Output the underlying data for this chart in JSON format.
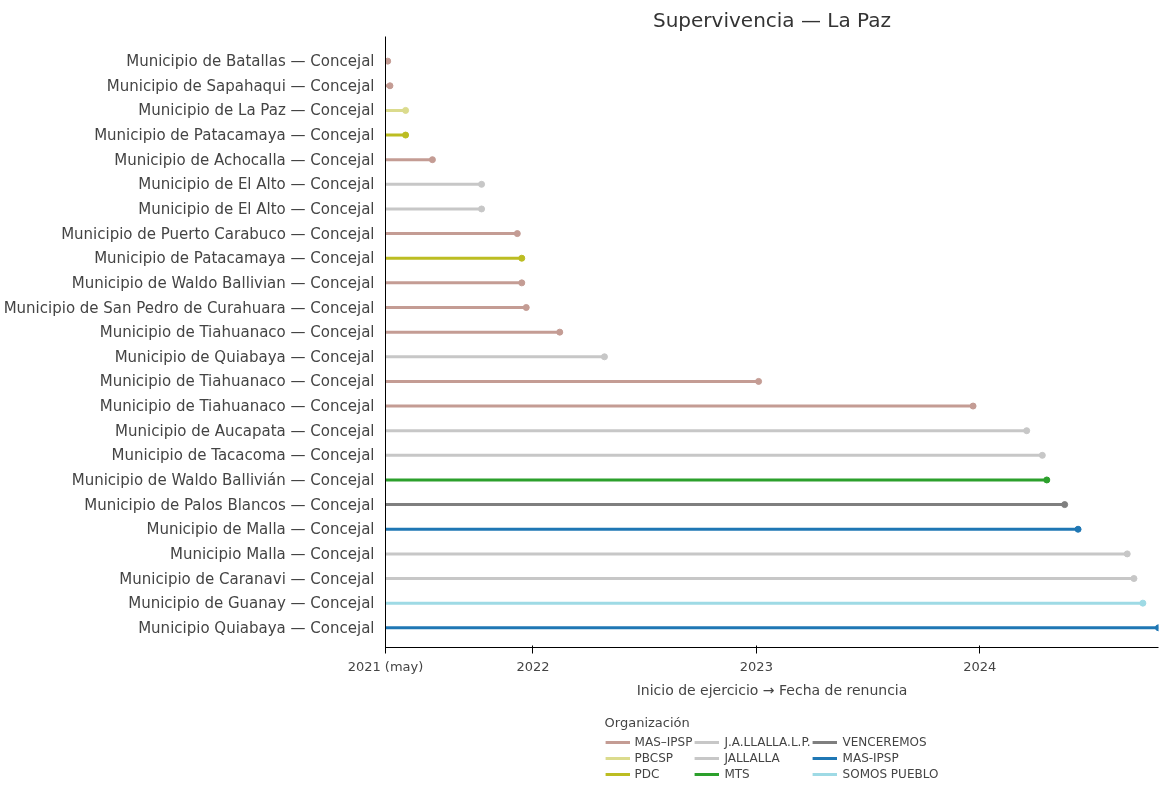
{
  "chart_data": {
    "type": "lollipop",
    "orientation": "horizontal",
    "title": "Supervivencia — La Paz",
    "xlabel": "Inicio de ejercicio → Fecha de renuncia",
    "legend_title": "Organización",
    "legend": "bottom",
    "grid": false,
    "marker": "circle",
    "categories": [
      "Municipio de Batallas — Concejal",
      "Municipio de Sapahaqui — Concejal",
      "Municipio de La Paz — Concejal",
      "Municipio de Patacamaya — Concejal",
      "Municipio de Achocalla — Concejal",
      "Municipio de El Alto — Concejal",
      "Municipio de El Alto — Concejal",
      "Municipio de Puerto Carabuco — Concejal",
      "Municipio de Patacamaya — Concejal",
      "Municipio de Waldo Ballivian — Concejal",
      "Municipio de San Pedro de Curahuara — Concejal",
      "Municipio de Tiahuanaco — Concejal",
      "Municipio de Quiabaya — Concejal",
      "Municipio de Tiahuanaco — Concejal",
      "Municipio de Tiahuanaco — Concejal",
      "Municipio de Aucapata — Concejal",
      "Municipio de Tacacoma — Concejal",
      "Municipio de Waldo Ballivián — Concejal",
      "Municipio de Palos Blancos — Concejal",
      "Municipio de Malla — Concejal",
      "Municipio Malla — Concejal",
      "Municipio de Caranavi — Concejal",
      "Municipio de Guanay — Concejal",
      "Municipio Quiabaya — Concejal"
    ],
    "xlim": [
      2021.34,
      2024.8
    ],
    "xticks": [
      {
        "value": 2021.34,
        "label": "2021 (may)"
      },
      2022,
      2023,
      2024
    ],
    "series": [
      {
        "name": "MAS–IPSP",
        "color": "#c49c94",
        "values": [
          2021.35,
          2021.36,
          null,
          null,
          2021.55,
          null,
          null,
          2021.93,
          null,
          2021.95,
          2021.97,
          2022.12,
          null,
          2023.01,
          2023.97,
          null,
          null,
          null,
          null,
          null,
          null,
          null,
          null,
          null
        ]
      },
      {
        "name": "PBCSP",
        "color": "#dbdb8d",
        "values": [
          null,
          null,
          2021.43,
          null,
          null,
          null,
          null,
          null,
          null,
          null,
          null,
          null,
          null,
          null,
          null,
          null,
          null,
          null,
          null,
          null,
          null,
          null,
          null,
          null
        ]
      },
      {
        "name": "PDC",
        "color": "#bcbd22",
        "values": [
          null,
          null,
          null,
          2021.43,
          null,
          null,
          null,
          null,
          2021.95,
          null,
          null,
          null,
          null,
          null,
          null,
          null,
          null,
          null,
          null,
          null,
          null,
          null,
          null,
          null
        ]
      },
      {
        "name": "J.A.LLALLA.L.P.",
        "color": "#c7c7c7",
        "values": [
          null,
          null,
          null,
          null,
          null,
          2021.77,
          2021.77,
          null,
          null,
          null,
          null,
          null,
          null,
          null,
          null,
          null,
          null,
          null,
          null,
          null,
          null,
          null,
          null,
          null
        ]
      },
      {
        "name": "JALLALLA",
        "color": "#c7c7c7",
        "values": [
          null,
          null,
          null,
          null,
          null,
          null,
          null,
          null,
          null,
          null,
          null,
          null,
          2022.32,
          null,
          null,
          2024.21,
          2024.28,
          null,
          null,
          null,
          2024.66,
          2024.69,
          null,
          null
        ]
      },
      {
        "name": "MTS",
        "color": "#2ca02c",
        "values": [
          null,
          null,
          null,
          null,
          null,
          null,
          null,
          null,
          null,
          null,
          null,
          null,
          null,
          null,
          null,
          null,
          null,
          2024.3,
          null,
          null,
          null,
          null,
          null,
          null
        ]
      },
      {
        "name": "VENCEREMOS",
        "color": "#7f7f7f",
        "values": [
          null,
          null,
          null,
          null,
          null,
          null,
          null,
          null,
          null,
          null,
          null,
          null,
          null,
          null,
          null,
          null,
          null,
          null,
          2024.38,
          null,
          null,
          null,
          null,
          null
        ]
      },
      {
        "name": "MAS-IPSP",
        "color": "#1f77b4",
        "values": [
          null,
          null,
          null,
          null,
          null,
          null,
          null,
          null,
          null,
          null,
          null,
          null,
          null,
          null,
          null,
          null,
          null,
          null,
          null,
          2024.44,
          null,
          null,
          null,
          2024.8
        ]
      },
      {
        "name": "SOMOS PUEBLO",
        "color": "#9edae5",
        "values": [
          null,
          null,
          null,
          null,
          null,
          null,
          null,
          null,
          null,
          null,
          null,
          null,
          null,
          null,
          null,
          null,
          null,
          null,
          null,
          null,
          null,
          null,
          2024.73,
          null
        ]
      }
    ]
  }
}
